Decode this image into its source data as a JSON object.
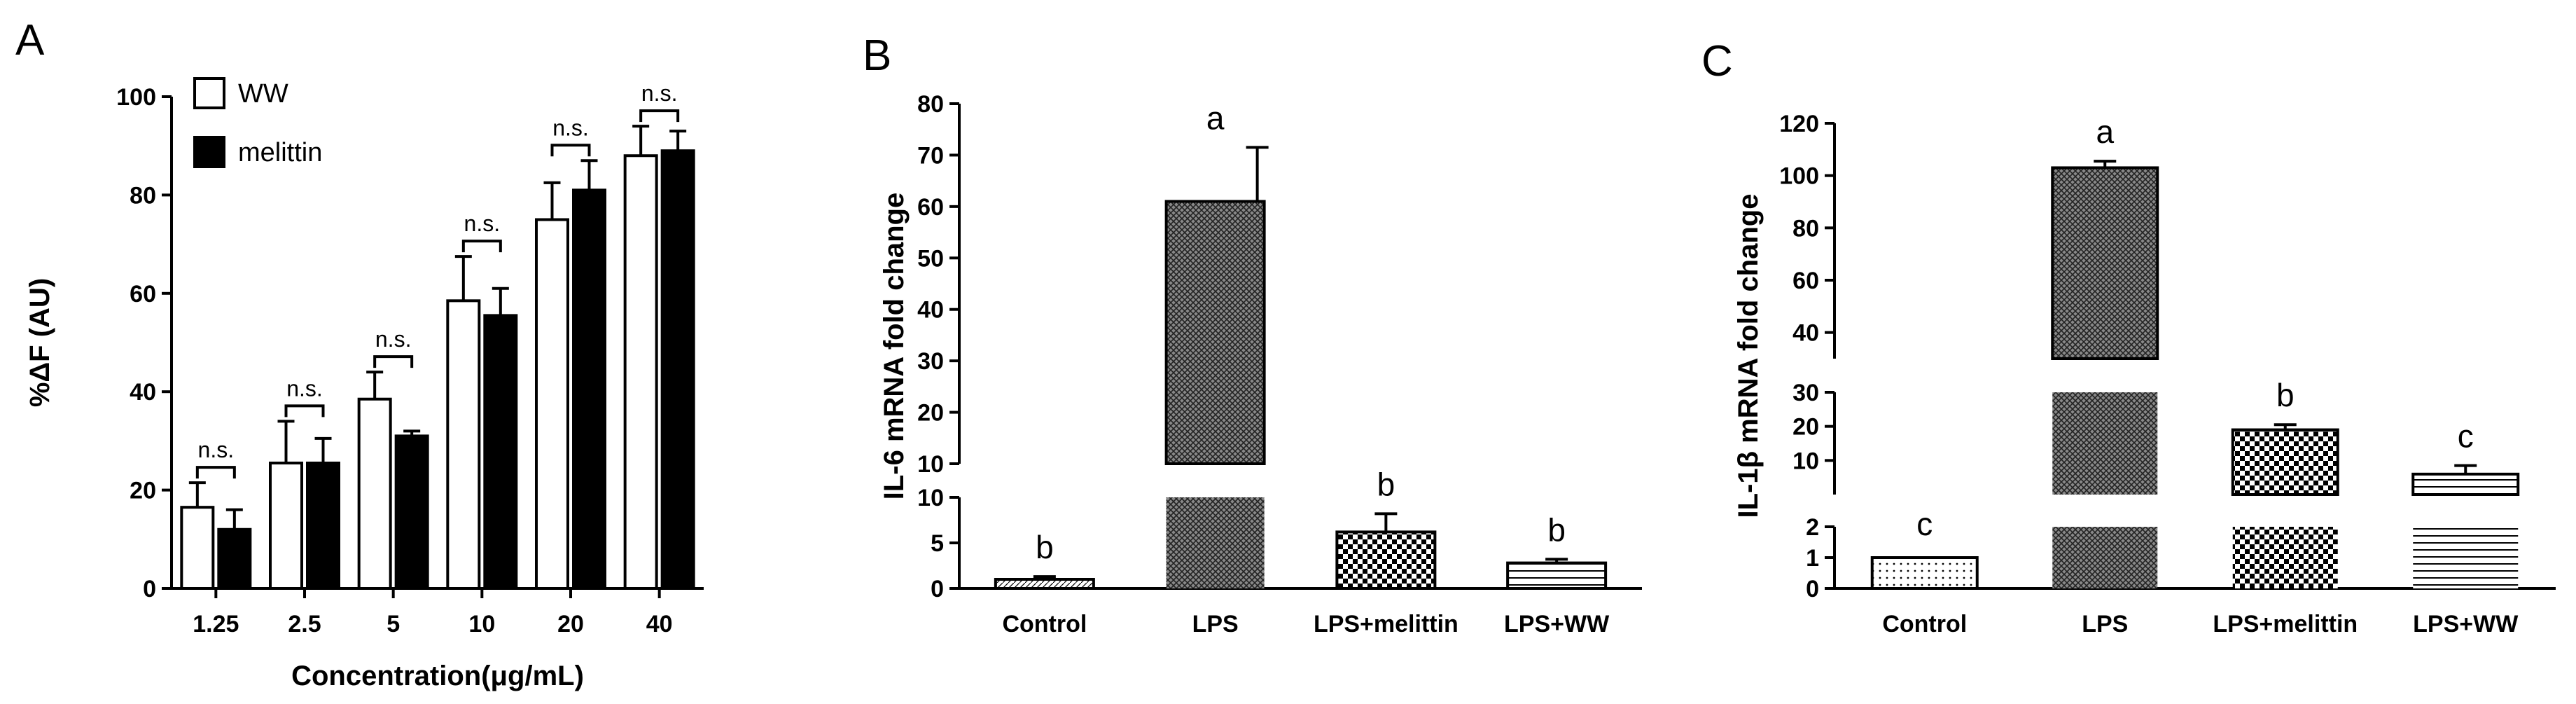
{
  "chart_data": [
    {
      "panel": "A",
      "type": "bar",
      "xlabel": "Concentration(μg/mL)",
      "ylabel": "%ΔF (AU)",
      "ylim": [
        0,
        100
      ],
      "yticks": [
        "0",
        "20",
        "40",
        "60",
        "80",
        "100"
      ],
      "categories": [
        "1.25",
        "2.5",
        "5",
        "10",
        "20",
        "40"
      ],
      "series": [
        {
          "name": "WW",
          "color": "#ffffff",
          "values": [
            16.5,
            25.5,
            38.5,
            58.5,
            75,
            88
          ],
          "errors": [
            5,
            8.5,
            5.5,
            9,
            7.5,
            6
          ]
        },
        {
          "name": "melittin",
          "color": "#000000",
          "values": [
            12,
            25.5,
            31,
            55.5,
            81,
            89
          ],
          "errors": [
            4,
            5,
            1,
            5.5,
            6,
            4
          ]
        }
      ],
      "annotations": [
        "n.s.",
        "n.s.",
        "n.s.",
        "n.s.",
        "n.s.",
        "n.s."
      ],
      "legend_position": "top-left"
    },
    {
      "panel": "B",
      "type": "bar",
      "ylabel": "IL-6 mRNA fold change",
      "broken_axis": true,
      "ylim_lower": [
        0,
        10
      ],
      "ylim_upper": [
        10,
        80
      ],
      "yticks_lower": [
        "0",
        "5",
        "10"
      ],
      "yticks_upper": [
        "10",
        "20",
        "30",
        "40",
        "50",
        "60",
        "70",
        "80"
      ],
      "categories": [
        "Control",
        "LPS",
        "LPS+melittin",
        "LPS+WW"
      ],
      "values": [
        1,
        61,
        6.2,
        2.8
      ],
      "errors": [
        0.3,
        10.5,
        2,
        0.4
      ],
      "patterns": [
        "hatch-dense",
        "crosshatch",
        "checker",
        "horizontal-lines"
      ],
      "annotations": [
        "b",
        "a",
        "b",
        "b"
      ]
    },
    {
      "panel": "C",
      "type": "bar",
      "ylabel": "IL-1β  mRNA fold change",
      "broken_axis": true,
      "ylim_lower": [
        0,
        2
      ],
      "ylim_middle": [
        0,
        30
      ],
      "ylim_upper": [
        30,
        120
      ],
      "yticks_lower": [
        "0",
        "1",
        "2"
      ],
      "yticks_middle": [
        "10",
        "20",
        "30"
      ],
      "yticks_upper": [
        "40",
        "60",
        "80",
        "100",
        "120"
      ],
      "categories": [
        "Control",
        "LPS",
        "LPS+melittin",
        "LPS+WW"
      ],
      "values": [
        1,
        103,
        19,
        6
      ],
      "errors": [
        0.05,
        2.5,
        1.5,
        2.5
      ],
      "patterns": [
        "dots",
        "crosshatch",
        "checker",
        "horizontal-lines"
      ],
      "annotations": [
        "c",
        "a",
        "b",
        "c"
      ]
    }
  ],
  "labels": {
    "panelA": "A",
    "panelB": "B",
    "panelC": "C",
    "legendWW": "WW",
    "legendMelittin": "melittin"
  }
}
